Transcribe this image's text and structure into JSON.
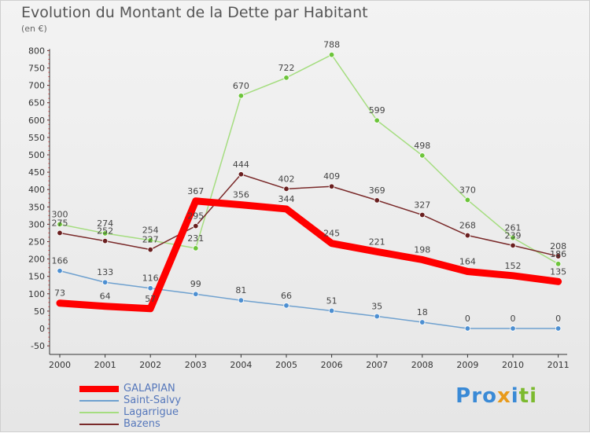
{
  "title": "Evolution du Montant de la Dette par Habitant",
  "subtitle": "(en €)",
  "logo": {
    "text": "Proxiti",
    "letters": [
      {
        "ch": "P",
        "color": "#3a8ad6"
      },
      {
        "ch": "r",
        "color": "#3a8ad6"
      },
      {
        "ch": "o",
        "color": "#3a8ad6"
      },
      {
        "ch": "x",
        "color": "#e89a1b"
      },
      {
        "ch": "i",
        "color": "#3a8ad6"
      },
      {
        "ch": "t",
        "color": "#7cba2f"
      },
      {
        "ch": "i",
        "color": "#7cba2f"
      }
    ]
  },
  "chart_data": {
    "type": "line",
    "x": [
      "2000",
      "2001",
      "2002",
      "2003",
      "2004",
      "2005",
      "2006",
      "2007",
      "2008",
      "2009",
      "2010",
      "2011"
    ],
    "yticks": [
      -50,
      0,
      50,
      100,
      150,
      200,
      250,
      300,
      350,
      400,
      450,
      500,
      550,
      600,
      650,
      700,
      750,
      800
    ],
    "ylim": [
      -50,
      800
    ],
    "grid": false,
    "legend": "bottom-left",
    "series": [
      {
        "name": "GALAPIAN",
        "color": "#ff0000",
        "width": 9,
        "marker": false,
        "values": [
          73,
          64,
          57,
          367,
          356,
          344,
          245,
          221,
          198,
          164,
          152,
          135
        ],
        "labels": [
          "73",
          "64",
          "57",
          "367",
          "356",
          "344",
          "245",
          "221",
          "198",
          "164",
          "152",
          "135"
        ]
      },
      {
        "name": "Saint-Salvy",
        "color": "#6fa1cf",
        "markerColor": "#4d8fd1",
        "width": 1.5,
        "marker": true,
        "values": [
          166,
          133,
          116,
          99,
          81,
          66,
          51,
          35,
          18,
          0,
          0,
          0
        ],
        "labels": [
          "166",
          "133",
          "116",
          "99",
          "81",
          "66",
          "51",
          "35",
          "18",
          "0",
          "0",
          "0"
        ]
      },
      {
        "name": "Lagarrigue",
        "color": "#a5dd80",
        "markerColor": "#6cc43a",
        "width": 1.5,
        "marker": true,
        "values": [
          300,
          274,
          254,
          231,
          670,
          722,
          788,
          599,
          498,
          370,
          261,
          186
        ],
        "labels": [
          "300",
          "274",
          "254",
          "231",
          "670",
          "722",
          "788",
          "599",
          "498",
          "370",
          "261",
          "186"
        ]
      },
      {
        "name": "Bazens",
        "color": "#7a2a2a",
        "markerColor": "#6a1f1f",
        "width": 1.5,
        "marker": true,
        "values": [
          275,
          252,
          227,
          295,
          444,
          402,
          409,
          369,
          327,
          268,
          239,
          208
        ],
        "labels": [
          "275",
          "252",
          "227",
          "295",
          "444",
          "402",
          "409",
          "369",
          "327",
          "268",
          "239",
          "208"
        ]
      }
    ]
  }
}
